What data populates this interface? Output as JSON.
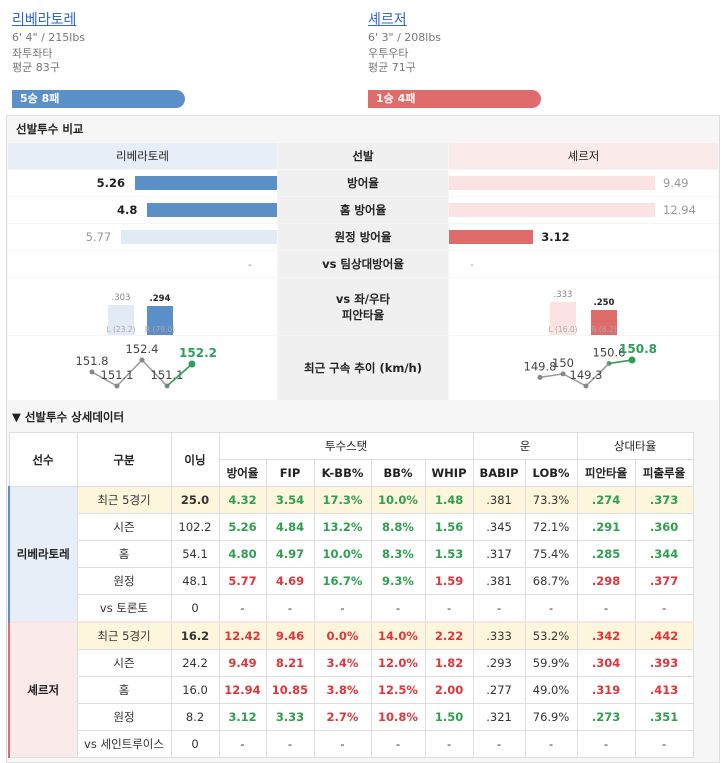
{
  "pitchers": [
    {
      "name": "리베라토레",
      "size": "6' 4\" / 215lbs",
      "hand": "좌투좌타",
      "avg_pitches": "평균 83구",
      "record": "5승 8패"
    },
    {
      "name": "셰르저",
      "size": "6' 3\" / 208lbs",
      "hand": "우투우타",
      "avg_pitches": "평균 71구",
      "record": "1승 4패"
    }
  ],
  "colors": {
    "left": "#5b8fc7",
    "left_light": "#e2eaf5",
    "left_bg": "#e8eef8",
    "right": "#e06b6b",
    "right_light": "#fbe3e3",
    "right_bg": "#fbeaea",
    "green": "#2e9e5b"
  },
  "comparison": {
    "title": "선발투수 비교",
    "header": [
      "리베라토레",
      "선발",
      "셰르저"
    ],
    "era_rows": [
      {
        "label": "방어율",
        "left": 5.26,
        "right": 9.49
      },
      {
        "label": "홈 방어율",
        "left": 4.8,
        "right": 12.94
      },
      {
        "label": "원정 방어율",
        "left": 5.77,
        "right": 3.12
      }
    ],
    "team_row": {
      "label": "vs 팀상대방어율",
      "left": "-",
      "right": "-"
    },
    "splits": {
      "label": "vs 좌/우타\n피안타율",
      "left": [
        {
          "value": 0.303,
          "label": ".303",
          "note": "L (23.2)"
        },
        {
          "value": 0.294,
          "label": ".294",
          "note": "R (79.0)"
        }
      ],
      "right": [
        {
          "value": 0.333,
          "label": ".333",
          "note": "L (16.0)"
        },
        {
          "value": 0.25,
          "label": ".250",
          "note": "R (8.2)"
        }
      ]
    },
    "velocity": {
      "label": "최근 구속 추이 (km/h)",
      "left": [
        151.8,
        151.1,
        152.4,
        151.1,
        152.2
      ],
      "right": [
        149.8,
        150,
        149.3,
        150.6,
        150.8
      ]
    }
  },
  "detail": {
    "title": "▼ 선발투수 상세데이터",
    "head": {
      "player": "선수",
      "split": "구분",
      "ip": "이닝",
      "groups": [
        {
          "name": "투수스탯",
          "cols": [
            "방어율",
            "FIP",
            "K-BB%",
            "BB%",
            "WHIP"
          ]
        },
        {
          "name": "운",
          "cols": [
            "BABIP",
            "LOB%"
          ]
        },
        {
          "name": "상대타율",
          "cols": [
            "피안타율",
            "피출루율"
          ]
        }
      ]
    },
    "tone_colors": {
      "g": "#2e9e4f",
      "r": "#e0353a",
      "n": "#333"
    },
    "players": [
      {
        "name": "리베라토레",
        "rows": [
          {
            "label": "최근 5경기",
            "cells": [
              "25.0",
              "4.32",
              "3.54",
              "17.3%",
              "10.0%",
              "1.48",
              ".381",
              "73.3%",
              ".274",
              ".373"
            ],
            "tone": "ngggggnngg"
          },
          {
            "label": "시즌",
            "cells": [
              "102.2",
              "5.26",
              "4.84",
              "13.2%",
              "8.8%",
              "1.56",
              ".345",
              "72.1%",
              ".291",
              ".360"
            ],
            "tone": "ngggggnngg"
          },
          {
            "label": "홈",
            "cells": [
              "54.1",
              "4.80",
              "4.97",
              "10.0%",
              "8.3%",
              "1.53",
              ".317",
              "75.4%",
              ".285",
              ".344"
            ],
            "tone": "ngggggnngg"
          },
          {
            "label": "원정",
            "cells": [
              "48.1",
              "5.77",
              "4.69",
              "16.7%",
              "9.3%",
              "1.59",
              ".381",
              "68.7%",
              ".298",
              ".377"
            ],
            "tone": "nrrggrnnrr"
          },
          {
            "label": "vs 토론토",
            "cells": [
              "0",
              "-",
              "-",
              "-",
              "-",
              "-",
              "-",
              "-",
              "-",
              "-"
            ],
            "tone": "nnnnnnnnnn"
          }
        ]
      },
      {
        "name": "셰르저",
        "rows": [
          {
            "label": "최근 5경기",
            "cells": [
              "16.2",
              "12.42",
              "9.46",
              "0.0%",
              "14.0%",
              "2.22",
              ".333",
              "53.2%",
              ".342",
              ".442"
            ],
            "tone": "nrrrrrnnrr"
          },
          {
            "label": "시즌",
            "cells": [
              "24.2",
              "9.49",
              "8.21",
              "3.4%",
              "12.0%",
              "1.82",
              ".293",
              "59.9%",
              ".304",
              ".393"
            ],
            "tone": "nrrrrrnnrr"
          },
          {
            "label": "홈",
            "cells": [
              "16.0",
              "12.94",
              "10.85",
              "3.8%",
              "12.5%",
              "2.00",
              ".277",
              "49.0%",
              ".319",
              ".413"
            ],
            "tone": "nrrrrrnnrr"
          },
          {
            "label": "원정",
            "cells": [
              "8.2",
              "3.12",
              "3.33",
              "2.7%",
              "10.8%",
              "1.50",
              ".321",
              "76.9%",
              ".273",
              ".351"
            ],
            "tone": "nggrrgnngg"
          },
          {
            "label": "vs 세인트루이스",
            "cells": [
              "0",
              "-",
              "-",
              "-",
              "-",
              "-",
              "-",
              "-",
              "-",
              "-"
            ],
            "tone": "nnnnnnnnnn"
          }
        ]
      }
    ]
  }
}
